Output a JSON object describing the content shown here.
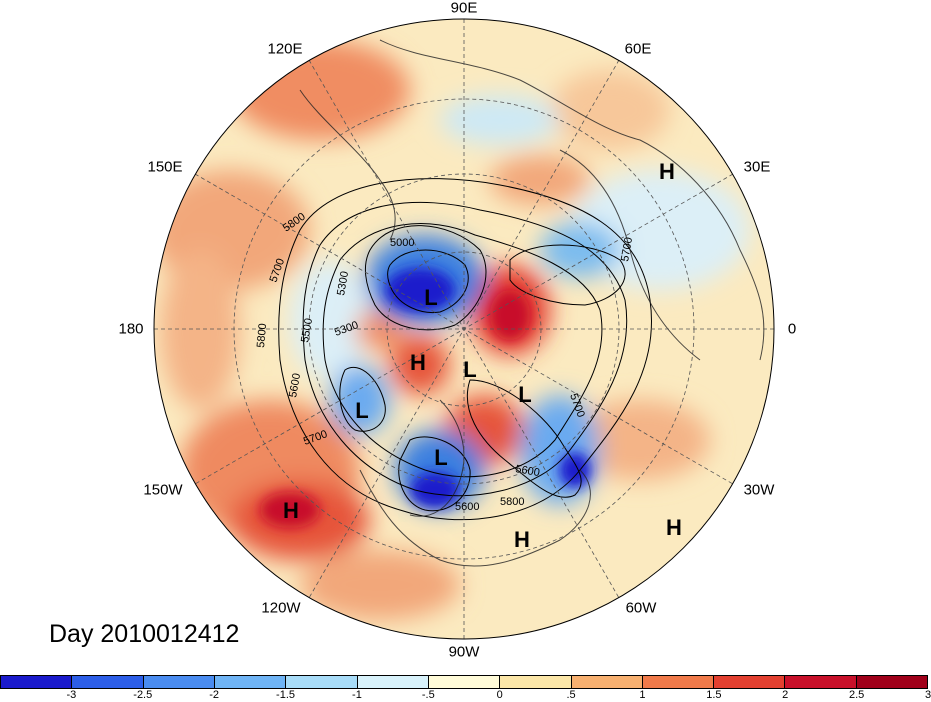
{
  "title": "Day 2010012412",
  "longitude_labels": {
    "lon_90e": "90E",
    "lon_60e": "60E",
    "lon_120e": "120E",
    "lon_30e": "30E",
    "lon_150e": "150E",
    "lon_180": "180",
    "lon_0": "0",
    "lon_150w": "150W",
    "lon_30w": "30W",
    "lon_120w": "120W",
    "lon_60w": "60W",
    "lon_90w": "90W"
  },
  "pressure_centers": [
    {
      "label": "H"
    },
    {
      "label": "L"
    },
    {
      "label": "H"
    },
    {
      "label": "L"
    },
    {
      "label": "L"
    },
    {
      "label": "L"
    },
    {
      "label": "L"
    },
    {
      "label": "H"
    },
    {
      "label": "H"
    },
    {
      "label": "H"
    }
  ],
  "contour_labels": [
    "5800",
    "5700",
    "5000",
    "5300",
    "5500",
    "5600",
    "5300",
    "5800",
    "5700",
    "5600",
    "5700",
    "5800",
    "5600",
    "5700"
  ],
  "colorbar": {
    "colors": [
      "#1a1acc",
      "#2c5ee8",
      "#4a8cf0",
      "#6fb4f5",
      "#a8dcf8",
      "#d8f2fb",
      "#fffbd8",
      "#fbe6a8",
      "#f7b070",
      "#f07a4a",
      "#e34030",
      "#c8102a",
      "#a0001a"
    ],
    "ticks": [
      "-3",
      "-2.5",
      "-2",
      "-1.5",
      "-1",
      "-.5",
      "0",
      ".5",
      "1",
      "1.5",
      "2",
      "2.5",
      "3"
    ]
  },
  "colors": {
    "ocean_warm": "#f4b487",
    "warm": "#ee7f58",
    "cold": "#5c9ee8",
    "neutral": "#fbeac0"
  }
}
